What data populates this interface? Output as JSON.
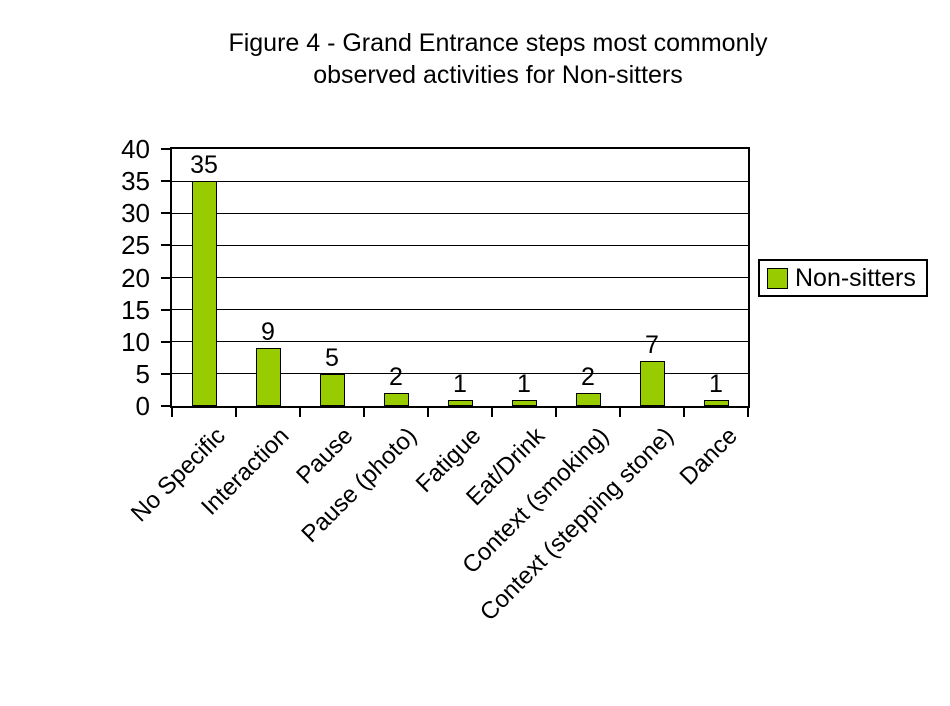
{
  "chart_data": {
    "type": "bar",
    "title": "Figure 4 - Grand Entrance steps most commonly observed activities for Non-sitters",
    "title_line1": "Figure 4 - Grand Entrance steps most commonly",
    "title_line2": "observed activities for Non-sitters",
    "categories": [
      "No Specific",
      "Interaction",
      "Pause",
      "Pause (photo)",
      "Fatigue",
      "Eat/Drink",
      "Context (smoking)",
      "Context (stepping stone)",
      "Dance"
    ],
    "series": [
      {
        "name": "Non-sitters",
        "values": [
          35,
          9,
          5,
          2,
          1,
          1,
          2,
          7,
          1
        ]
      }
    ],
    "data_labels": [
      35,
      9,
      5,
      2,
      1,
      1,
      2,
      7,
      1
    ],
    "xlabel": "",
    "ylabel": "",
    "ylim": [
      0,
      40
    ],
    "ytick_step": 5,
    "ytick_labels": [
      "0",
      "5",
      "10",
      "15",
      "20",
      "25",
      "30",
      "35",
      "40"
    ],
    "grid": "horizontal",
    "legend_position": "right",
    "legend": {
      "entries": [
        {
          "label": "Non-sitters",
          "color": "#99CC00"
        }
      ]
    },
    "colors": {
      "bar_fill": "#99CC00",
      "bar_border": "#000000",
      "axis_line": "#000000",
      "grid_line": "#000000",
      "text": "#000000",
      "background": "#FFFFFF"
    }
  }
}
